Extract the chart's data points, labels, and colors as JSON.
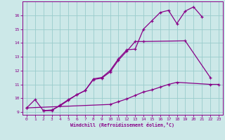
{
  "xlabel": "Windchill (Refroidissement éolien,°C)",
  "background_color": "#cce8e8",
  "line_color": "#880088",
  "grid_color": "#99cccc",
  "xlim": [
    -0.5,
    23.5
  ],
  "ylim": [
    8.8,
    17.0
  ],
  "xticks": [
    0,
    1,
    2,
    3,
    4,
    5,
    6,
    7,
    8,
    9,
    10,
    11,
    12,
    13,
    14,
    15,
    16,
    17,
    18,
    19,
    20,
    21,
    22,
    23
  ],
  "yticks": [
    9,
    10,
    11,
    12,
    13,
    14,
    15,
    16
  ],
  "line1_x": [
    0,
    1,
    2,
    3,
    4,
    5,
    6,
    7,
    8,
    9,
    10,
    11,
    12,
    13,
    14,
    15,
    16,
    17,
    18,
    19,
    20,
    21
  ],
  "line1_y": [
    9.3,
    9.9,
    9.1,
    9.1,
    9.5,
    9.9,
    10.25,
    10.55,
    11.4,
    11.5,
    12.0,
    12.85,
    13.5,
    13.55,
    15.0,
    15.6,
    16.2,
    16.35,
    15.4,
    16.3,
    16.6,
    15.9
  ],
  "line2_x": [
    2,
    3,
    4,
    5,
    6,
    7,
    8,
    9,
    10,
    11,
    12,
    13,
    14,
    19,
    22
  ],
  "line2_y": [
    9.1,
    9.15,
    9.45,
    9.85,
    10.25,
    10.55,
    11.35,
    11.45,
    11.9,
    12.75,
    13.4,
    14.1,
    14.1,
    14.15,
    11.5
  ],
  "line3_x": [
    0,
    10,
    11,
    12,
    13,
    14,
    15,
    16,
    17,
    18,
    22,
    23
  ],
  "line3_y": [
    9.3,
    9.55,
    9.75,
    9.95,
    10.2,
    10.45,
    10.6,
    10.8,
    11.0,
    11.15,
    11.0,
    11.0
  ]
}
